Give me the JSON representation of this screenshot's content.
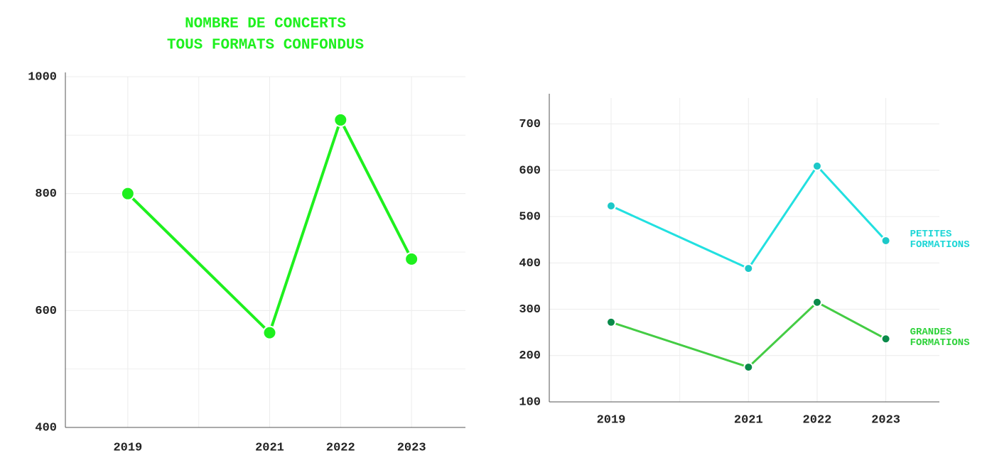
{
  "chart_data": [
    {
      "type": "line",
      "title": [
        "NOMBRE DE CONCERTS",
        "TOUS FORMATS CONFONDUS"
      ],
      "title_color": "#1ef01e",
      "x": [
        2019,
        2021,
        2022,
        2023
      ],
      "xlim": [
        2018.12,
        2023.76
      ],
      "xticks": [
        2019,
        2021,
        2022,
        2023
      ],
      "minor_xticks": [
        2020
      ],
      "ylim": [
        400,
        1000
      ],
      "yticks": [
        400,
        600,
        800,
        1000
      ],
      "minor_yticks": [
        500,
        700,
        900
      ],
      "grid": true,
      "series": [
        {
          "color": "#1ef01e",
          "marker_color": "#1ef01e",
          "values": [
            800,
            562,
            926,
            688
          ]
        }
      ]
    },
    {
      "type": "line",
      "x": [
        2019,
        2021,
        2022,
        2023
      ],
      "xlim": [
        2018.1,
        2023.78
      ],
      "xticks": [
        2019,
        2021,
        2022,
        2023
      ],
      "minor_xticks": [
        2020
      ],
      "ylim": [
        100,
        756
      ],
      "yticks": [
        100,
        200,
        300,
        400,
        500,
        600,
        700
      ],
      "grid": true,
      "series": [
        {
          "name": "PETITES FORMATIONS",
          "color": "#22e0e0",
          "marker_color": "#1cc8c8",
          "label_color": "#1cd6d6",
          "values": [
            523,
            388,
            609,
            448
          ]
        },
        {
          "name": "GRANDES FORMATIONS",
          "color": "#44cc44",
          "marker_color": "#0a8a4a",
          "label_color": "#2ed23a",
          "values": [
            272,
            175,
            315,
            236
          ]
        }
      ]
    }
  ]
}
